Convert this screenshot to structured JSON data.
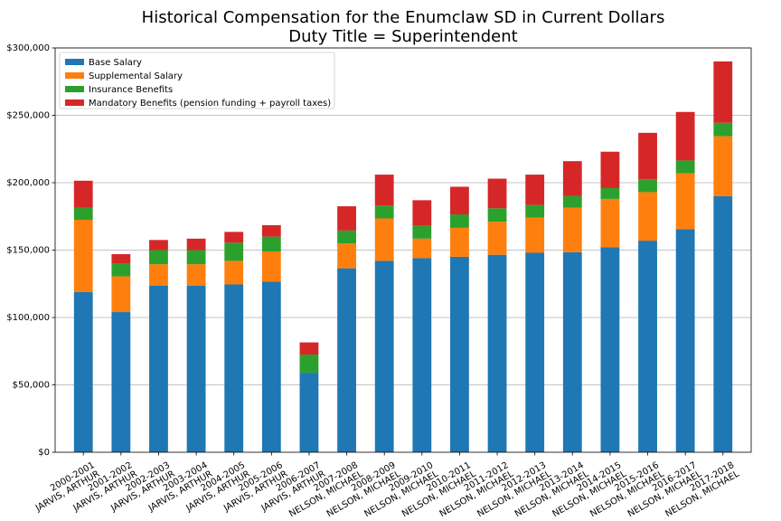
{
  "chart_data": {
    "type": "bar",
    "stacked": true,
    "title": "Historical Compensation for the Enumclaw SD in Current Dollars",
    "subtitle": "Duty Title = Superintendent",
    "xlabel": "",
    "ylabel": "",
    "ylim": [
      0,
      300000
    ],
    "yticks": [
      {
        "value": 0,
        "label": "$0"
      },
      {
        "value": 50000,
        "label": "$50,000"
      },
      {
        "value": 100000,
        "label": "$100,000"
      },
      {
        "value": 150000,
        "label": "$150,000"
      },
      {
        "value": 200000,
        "label": "$200,000"
      },
      {
        "value": 250000,
        "label": "$250,000"
      },
      {
        "value": 300000,
        "label": "$300,000"
      }
    ],
    "grid": "horizontal",
    "legend_position": "top-left",
    "categories": [
      {
        "year": "2000-2001",
        "name": "JARVIS, ARTHUR"
      },
      {
        "year": "2001-2002",
        "name": "JARVIS, ARTHUR"
      },
      {
        "year": "2002-2003",
        "name": "JARVIS, ARTHUR"
      },
      {
        "year": "2003-2004",
        "name": "JARVIS, ARTHUR"
      },
      {
        "year": "2004-2005",
        "name": "JARVIS, ARTHUR"
      },
      {
        "year": "2005-2006",
        "name": "JARVIS, ARTHUR"
      },
      {
        "year": "2006-2007",
        "name": "JARVIS, ARTHUR"
      },
      {
        "year": "2007-2008",
        "name": "NELSON, MICHAEL"
      },
      {
        "year": "2008-2009",
        "name": "NELSON, MICHAEL"
      },
      {
        "year": "2009-2010",
        "name": "NELSON, MICHAEL"
      },
      {
        "year": "2010-2011",
        "name": "NELSON, MICHAEL"
      },
      {
        "year": "2011-2012",
        "name": "NELSON, MICHAEL"
      },
      {
        "year": "2012-2013",
        "name": "NELSON, MICHAEL"
      },
      {
        "year": "2013-2014",
        "name": "NELSON, MICHAEL"
      },
      {
        "year": "2014-2015",
        "name": "NELSON, MICHAEL"
      },
      {
        "year": "2015-2016",
        "name": "NELSON, MICHAEL"
      },
      {
        "year": "2016-2017",
        "name": "NELSON, MICHAEL"
      },
      {
        "year": "2017-2018",
        "name": "NELSON, MICHAEL"
      }
    ],
    "series": [
      {
        "name": "Base Salary",
        "color": "#1f77b4",
        "values": [
          119000,
          104000,
          123500,
          123500,
          124500,
          126500,
          59000,
          136500,
          142000,
          144000,
          145000,
          146500,
          148000,
          148500,
          152000,
          157000,
          165500,
          190000
        ]
      },
      {
        "name": "Supplemental Salary",
        "color": "#ff7f0e",
        "values": [
          53500,
          26500,
          16000,
          16000,
          17500,
          22500,
          0,
          18500,
          31500,
          14500,
          21500,
          24500,
          26000,
          33000,
          36000,
          36000,
          41500,
          44500
        ]
      },
      {
        "name": "Insurance Benefits",
        "color": "#2ca02c",
        "values": [
          9000,
          9500,
          10500,
          10500,
          13500,
          11000,
          13500,
          9500,
          9500,
          9500,
          10000,
          10000,
          9500,
          8500,
          8000,
          9500,
          9500,
          10000
        ]
      },
      {
        "name": "Mandatory Benefits (pension funding + payroll taxes)",
        "color": "#d62728",
        "values": [
          20000,
          7000,
          7500,
          8500,
          8000,
          8500,
          9000,
          18000,
          23000,
          19000,
          20500,
          22000,
          22500,
          26000,
          27000,
          34500,
          36000,
          45500
        ]
      }
    ]
  }
}
